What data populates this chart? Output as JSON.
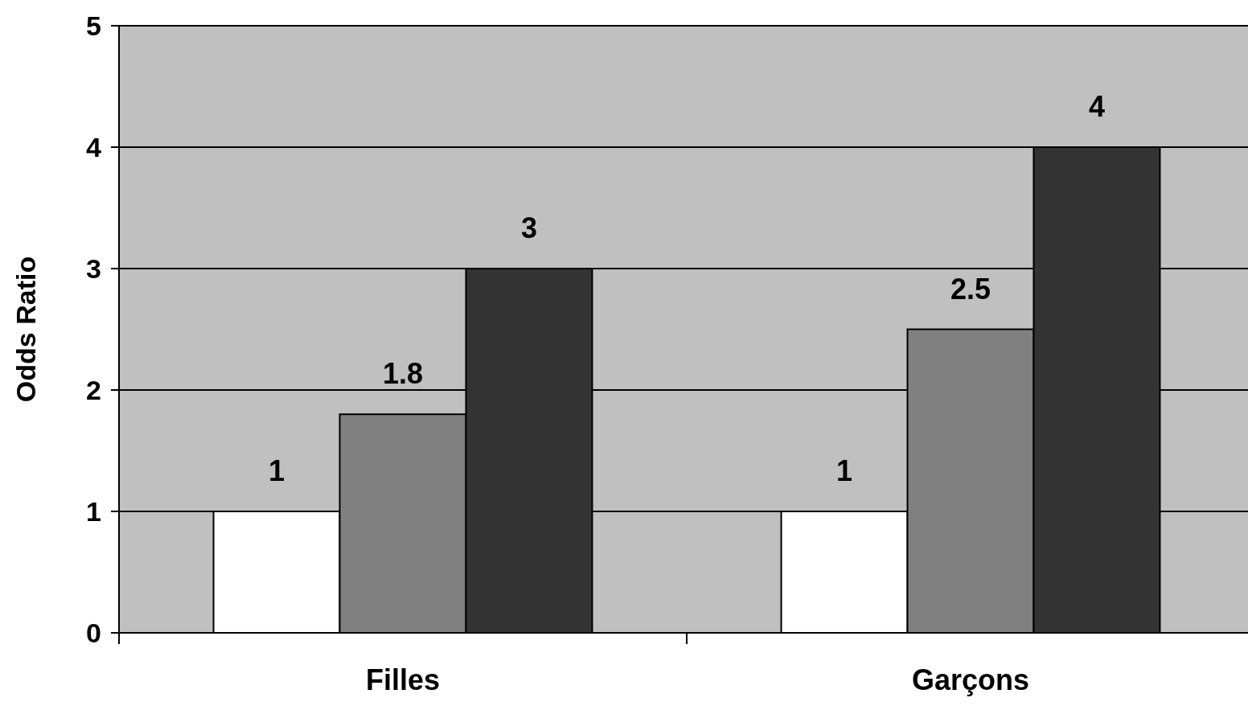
{
  "chart_data": {
    "type": "bar",
    "ylabel": "Odds Ratio",
    "categories": [
      "Filles",
      "Garçons"
    ],
    "series": [
      {
        "color": "#ffffff",
        "values": [
          1,
          1
        ]
      },
      {
        "color": "#808080",
        "values": [
          1.8,
          2.5
        ]
      },
      {
        "color": "#333333",
        "values": [
          3,
          4
        ]
      }
    ],
    "ylim": [
      0,
      5
    ],
    "yticks": [
      0,
      1,
      2,
      3,
      4,
      5
    ],
    "grid": "y",
    "data_labels": true
  }
}
